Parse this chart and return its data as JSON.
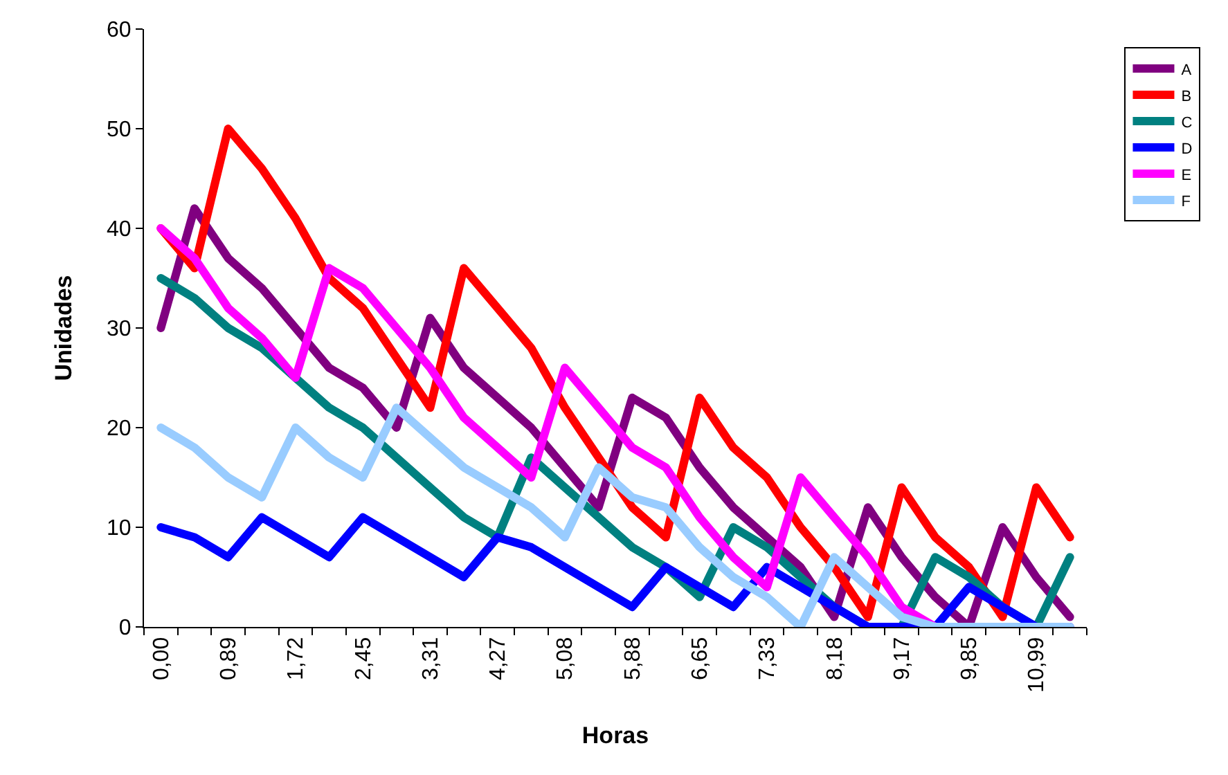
{
  "chart_data": {
    "type": "line",
    "xlabel": "Horas",
    "ylabel": "Unidades",
    "categories": [
      "0,00",
      null,
      "0,89",
      null,
      "1,72",
      null,
      "2,45",
      null,
      "3,31",
      null,
      "4,27",
      null,
      "5,08",
      null,
      "5,88",
      null,
      "6,65",
      null,
      "7,33",
      null,
      "8,18",
      null,
      "9,17",
      null,
      "9,85",
      null,
      "10,99",
      null
    ],
    "ylim": [
      0,
      60
    ],
    "yticks": [
      0,
      10,
      20,
      30,
      40,
      50,
      60
    ],
    "grid": false,
    "legend": "top right",
    "marker": "none",
    "line_style": "solid",
    "series": [
      {
        "name": "A",
        "color": "#800080",
        "values": [
          30,
          42,
          37,
          34,
          30,
          26,
          24,
          20,
          31,
          26,
          23,
          20,
          16,
          12,
          23,
          21,
          16,
          12,
          9,
          6,
          1,
          12,
          7,
          3,
          0,
          10,
          5,
          1
        ]
      },
      {
        "name": "B",
        "color": "#ff0000",
        "values": [
          40,
          36,
          50,
          46,
          41,
          35,
          32,
          27,
          22,
          36,
          32,
          28,
          22,
          17,
          12,
          9,
          23,
          18,
          15,
          10,
          6,
          1,
          14,
          9,
          6,
          1,
          14,
          9
        ]
      },
      {
        "name": "C",
        "color": "#008080",
        "values": [
          35,
          33,
          30,
          28,
          25,
          22,
          20,
          17,
          14,
          11,
          9,
          17,
          14,
          11,
          8,
          6,
          3,
          10,
          8,
          5,
          2,
          0,
          0,
          7,
          5,
          2,
          0,
          7
        ]
      },
      {
        "name": "D",
        "color": "#0000ff",
        "values": [
          10,
          9,
          7,
          11,
          9,
          7,
          11,
          9,
          7,
          5,
          9,
          8,
          6,
          4,
          2,
          6,
          4,
          2,
          6,
          4,
          2,
          0,
          0,
          0,
          4,
          2,
          0,
          0
        ]
      },
      {
        "name": "E",
        "color": "#ff00ff",
        "values": [
          40,
          37,
          32,
          29,
          25,
          36,
          34,
          30,
          26,
          21,
          18,
          15,
          26,
          22,
          18,
          16,
          11,
          7,
          4,
          15,
          11,
          7,
          2,
          0,
          0,
          null,
          null,
          null
        ]
      },
      {
        "name": "F",
        "color": "#99ccff",
        "values": [
          20,
          18,
          15,
          13,
          20,
          17,
          15,
          22,
          19,
          16,
          14,
          12,
          9,
          16,
          13,
          12,
          8,
          5,
          3,
          0,
          7,
          4,
          1,
          0,
          0,
          0,
          0,
          0
        ]
      }
    ]
  }
}
